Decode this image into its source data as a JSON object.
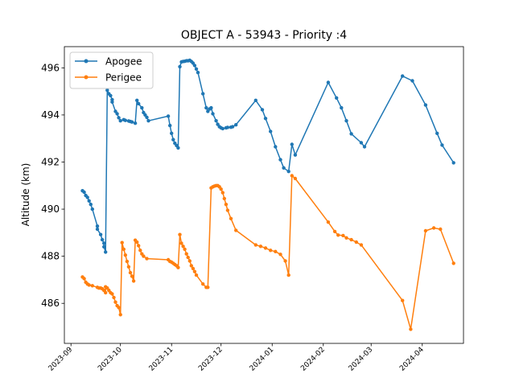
{
  "chart_data": {
    "type": "line",
    "title": "OBJECT A - 53943 - Priority :4",
    "xlabel": "",
    "ylabel": "Altitude (km)",
    "xlim": [
      "2023-08-28",
      "2024-04-26"
    ],
    "ylim": [
      484.3,
      496.9
    ],
    "x_ticks": [
      "2023-09",
      "2023-10",
      "2023-11",
      "2023-12",
      "2024-01",
      "2024-02",
      "2024-03",
      "2024-04"
    ],
    "y_ticks": [
      486,
      488,
      490,
      492,
      494,
      496
    ],
    "legend_position": "top-left",
    "colors": {
      "Apogee": "#1f77b4",
      "Perigee": "#ff7f0e"
    },
    "series": [
      {
        "name": "Apogee",
        "points": [
          [
            "2023-09-08",
            490.78
          ],
          [
            "2023-09-09",
            490.72
          ],
          [
            "2023-09-10",
            490.58
          ],
          [
            "2023-09-11",
            490.5
          ],
          [
            "2023-09-12",
            490.35
          ],
          [
            "2023-09-13",
            490.2
          ],
          [
            "2023-09-14",
            490.0
          ],
          [
            "2023-09-17",
            489.28
          ],
          [
            "2023-09-17",
            489.15
          ],
          [
            "2023-09-19",
            488.92
          ],
          [
            "2023-09-20",
            488.7
          ],
          [
            "2023-09-21",
            488.55
          ],
          [
            "2023-09-21",
            488.4
          ],
          [
            "2023-09-22",
            488.18
          ],
          [
            "2023-09-23",
            495.05
          ],
          [
            "2023-09-24",
            494.9
          ],
          [
            "2023-09-25",
            494.82
          ],
          [
            "2023-09-26",
            494.65
          ],
          [
            "2023-09-26",
            494.55
          ],
          [
            "2023-09-28",
            494.15
          ],
          [
            "2023-09-29",
            494.05
          ],
          [
            "2023-09-30",
            493.88
          ],
          [
            "2023-10-01",
            493.75
          ],
          [
            "2023-10-03",
            493.8
          ],
          [
            "2023-10-04",
            493.77
          ],
          [
            "2023-10-06",
            493.74
          ],
          [
            "2023-10-07",
            493.72
          ],
          [
            "2023-10-08",
            493.7
          ],
          [
            "2023-10-10",
            493.65
          ],
          [
            "2023-10-11",
            494.62
          ],
          [
            "2023-10-12",
            494.48
          ],
          [
            "2023-10-14",
            494.3
          ],
          [
            "2023-10-15",
            494.1
          ],
          [
            "2023-10-16",
            494.0
          ],
          [
            "2023-10-17",
            493.9
          ],
          [
            "2023-10-18",
            493.75
          ],
          [
            "2023-10-30",
            493.95
          ],
          [
            "2023-10-31",
            493.55
          ],
          [
            "2023-11-01",
            493.22
          ],
          [
            "2023-11-02",
            492.95
          ],
          [
            "2023-11-03",
            492.8
          ],
          [
            "2023-11-04",
            492.7
          ],
          [
            "2023-11-05",
            492.6
          ],
          [
            "2023-11-06",
            496.05
          ],
          [
            "2023-11-07",
            496.25
          ],
          [
            "2023-11-08",
            496.27
          ],
          [
            "2023-11-09",
            496.28
          ],
          [
            "2023-11-10",
            496.3
          ],
          [
            "2023-11-11",
            496.3
          ],
          [
            "2023-11-12",
            496.32
          ],
          [
            "2023-11-13",
            496.27
          ],
          [
            "2023-11-14",
            496.2
          ],
          [
            "2023-11-15",
            496.1
          ],
          [
            "2023-11-16",
            495.95
          ],
          [
            "2023-11-17",
            495.8
          ],
          [
            "2023-11-20",
            494.9
          ],
          [
            "2023-11-22",
            494.3
          ],
          [
            "2023-11-23",
            494.15
          ],
          [
            "2023-11-24",
            494.25
          ],
          [
            "2023-11-25",
            494.3
          ],
          [
            "2023-11-26",
            494.05
          ],
          [
            "2023-11-28",
            493.75
          ],
          [
            "2023-11-29",
            493.6
          ],
          [
            "2023-11-30",
            493.5
          ],
          [
            "2023-12-01",
            493.45
          ],
          [
            "2023-12-02",
            493.42
          ],
          [
            "2023-12-04",
            493.45
          ],
          [
            "2023-12-05",
            493.47
          ],
          [
            "2023-12-07",
            493.48
          ],
          [
            "2023-12-08",
            493.5
          ],
          [
            "2023-12-10",
            493.58
          ],
          [
            "2023-12-22",
            494.62
          ],
          [
            "2023-12-26",
            494.22
          ],
          [
            "2023-12-28",
            493.85
          ],
          [
            "2023-12-31",
            493.3
          ],
          [
            "2024-01-03",
            492.65
          ],
          [
            "2024-01-06",
            492.1
          ],
          [
            "2024-01-08",
            491.75
          ],
          [
            "2024-01-11",
            491.6
          ],
          [
            "2024-01-13",
            492.75
          ],
          [
            "2024-01-15",
            492.3
          ],
          [
            "2024-02-04",
            495.38
          ],
          [
            "2024-02-09",
            494.72
          ],
          [
            "2024-02-12",
            494.3
          ],
          [
            "2024-02-15",
            493.75
          ],
          [
            "2024-02-18",
            493.2
          ],
          [
            "2024-02-24",
            492.82
          ],
          [
            "2024-02-26",
            492.65
          ],
          [
            "2024-03-20",
            495.65
          ],
          [
            "2024-03-26",
            495.45
          ],
          [
            "2024-04-03",
            494.42
          ],
          [
            "2024-04-10",
            493.22
          ],
          [
            "2024-04-13",
            492.72
          ],
          [
            "2024-04-20",
            491.97
          ]
        ]
      },
      {
        "name": "Perigee",
        "points": [
          [
            "2023-09-08",
            487.12
          ],
          [
            "2023-09-09",
            487.05
          ],
          [
            "2023-09-10",
            486.9
          ],
          [
            "2023-09-11",
            486.82
          ],
          [
            "2023-09-12",
            486.78
          ],
          [
            "2023-09-14",
            486.75
          ],
          [
            "2023-09-17",
            486.68
          ],
          [
            "2023-09-18",
            486.65
          ],
          [
            "2023-09-19",
            486.65
          ],
          [
            "2023-09-20",
            486.62
          ],
          [
            "2023-09-21",
            486.55
          ],
          [
            "2023-09-22",
            486.45
          ],
          [
            "2023-09-22",
            486.7
          ],
          [
            "2023-09-23",
            486.65
          ],
          [
            "2023-09-24",
            486.55
          ],
          [
            "2023-09-25",
            486.45
          ],
          [
            "2023-09-26",
            486.4
          ],
          [
            "2023-09-27",
            486.25
          ],
          [
            "2023-09-28",
            486.05
          ],
          [
            "2023-09-29",
            485.9
          ],
          [
            "2023-09-30",
            485.82
          ],
          [
            "2023-10-01",
            485.52
          ],
          [
            "2023-10-02",
            488.58
          ],
          [
            "2023-10-03",
            488.3
          ],
          [
            "2023-10-04",
            488.05
          ],
          [
            "2023-10-05",
            487.78
          ],
          [
            "2023-10-06",
            487.55
          ],
          [
            "2023-10-07",
            487.3
          ],
          [
            "2023-10-08",
            487.15
          ],
          [
            "2023-10-09",
            486.95
          ],
          [
            "2023-10-10",
            488.68
          ],
          [
            "2023-10-11",
            488.6
          ],
          [
            "2023-10-12",
            488.45
          ],
          [
            "2023-10-13",
            488.25
          ],
          [
            "2023-10-14",
            488.1
          ],
          [
            "2023-10-15",
            488.0
          ],
          [
            "2023-10-17",
            487.9
          ],
          [
            "2023-10-30",
            487.85
          ],
          [
            "2023-10-31",
            487.78
          ],
          [
            "2023-11-01",
            487.75
          ],
          [
            "2023-11-02",
            487.7
          ],
          [
            "2023-11-03",
            487.65
          ],
          [
            "2023-11-04",
            487.6
          ],
          [
            "2023-11-05",
            487.52
          ],
          [
            "2023-11-06",
            488.92
          ],
          [
            "2023-11-07",
            488.55
          ],
          [
            "2023-11-08",
            488.42
          ],
          [
            "2023-11-09",
            488.3
          ],
          [
            "2023-11-10",
            488.1
          ],
          [
            "2023-11-11",
            487.95
          ],
          [
            "2023-11-12",
            487.8
          ],
          [
            "2023-11-13",
            487.6
          ],
          [
            "2023-11-14",
            487.48
          ],
          [
            "2023-11-15",
            487.35
          ],
          [
            "2023-11-16",
            487.2
          ],
          [
            "2023-11-20",
            486.82
          ],
          [
            "2023-11-22",
            486.68
          ],
          [
            "2023-11-23",
            486.68
          ],
          [
            "2023-11-25",
            490.9
          ],
          [
            "2023-11-26",
            490.95
          ],
          [
            "2023-11-27",
            490.98
          ],
          [
            "2023-11-28",
            491.0
          ],
          [
            "2023-11-29",
            491.0
          ],
          [
            "2023-11-30",
            490.95
          ],
          [
            "2023-12-01",
            490.85
          ],
          [
            "2023-12-02",
            490.7
          ],
          [
            "2023-12-03",
            490.45
          ],
          [
            "2023-12-04",
            490.2
          ],
          [
            "2023-12-05",
            489.95
          ],
          [
            "2023-12-07",
            489.6
          ],
          [
            "2023-12-10",
            489.1
          ],
          [
            "2023-12-22",
            488.48
          ],
          [
            "2023-12-25",
            488.42
          ],
          [
            "2023-12-28",
            488.35
          ],
          [
            "2023-12-31",
            488.25
          ],
          [
            "2024-01-03",
            488.2
          ],
          [
            "2024-01-06",
            488.08
          ],
          [
            "2024-01-09",
            487.8
          ],
          [
            "2024-01-11",
            487.2
          ],
          [
            "2024-01-13",
            491.42
          ],
          [
            "2024-01-15",
            491.3
          ],
          [
            "2024-02-04",
            489.45
          ],
          [
            "2024-02-08",
            489.05
          ],
          [
            "2024-02-10",
            488.9
          ],
          [
            "2024-02-13",
            488.88
          ],
          [
            "2024-02-15",
            488.78
          ],
          [
            "2024-02-18",
            488.7
          ],
          [
            "2024-02-21",
            488.6
          ],
          [
            "2024-02-24",
            488.48
          ],
          [
            "2024-03-20",
            486.12
          ],
          [
            "2024-03-25",
            484.9
          ],
          [
            "2024-04-03",
            489.08
          ],
          [
            "2024-04-08",
            489.2
          ],
          [
            "2024-04-12",
            489.15
          ],
          [
            "2024-04-20",
            487.7
          ]
        ]
      }
    ]
  }
}
